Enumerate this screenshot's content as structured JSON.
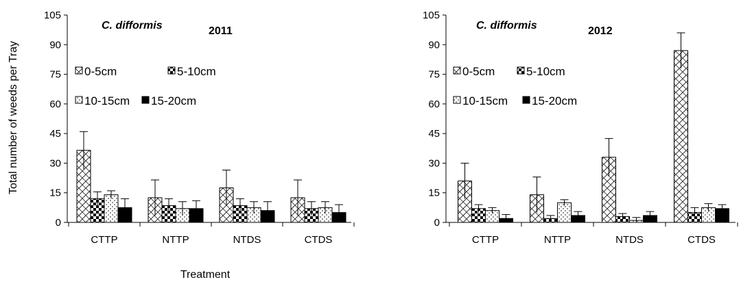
{
  "y_axis_title": "Total number of weeds per Tray",
  "x_axis_title": "Treatment",
  "chart_data": [
    {
      "type": "bar",
      "species": "C. difformis",
      "year": "2011",
      "categories": [
        "CTTP",
        "NTTP",
        "NTDS",
        "CTDS"
      ],
      "yticks": [
        "0",
        "15",
        "30",
        "45",
        "60",
        "75",
        "90",
        "105"
      ],
      "ylim": [
        0,
        105
      ],
      "legend": [
        "0-5cm",
        "5-10cm",
        "10-15cm",
        "15-20cm"
      ],
      "series": [
        {
          "name": "0-5cm",
          "pattern": "crosshatch",
          "values": [
            36.5,
            12.5,
            17.5,
            12.5
          ],
          "errors": [
            9.5,
            9.0,
            9.0,
            9.0
          ]
        },
        {
          "name": "5-10cm",
          "pattern": "checker",
          "values": [
            12.0,
            8.5,
            8.5,
            7.0
          ],
          "errors": [
            3.5,
            3.5,
            3.5,
            3.5
          ]
        },
        {
          "name": "10-15cm",
          "pattern": "dots",
          "values": [
            14.0,
            7.0,
            7.5,
            7.5
          ],
          "errors": [
            2.0,
            3.5,
            3.0,
            3.0
          ]
        },
        {
          "name": "15-20cm",
          "pattern": "solid",
          "values": [
            7.5,
            7.0,
            6.0,
            5.0
          ],
          "errors": [
            4.5,
            4.0,
            4.5,
            4.0
          ]
        }
      ]
    },
    {
      "type": "bar",
      "species": "C. difformis",
      "year": "2012",
      "categories": [
        "CTTP",
        "NTTP",
        "NTDS",
        "CTDS"
      ],
      "yticks": [
        "0",
        "15",
        "30",
        "45",
        "60",
        "75",
        "90",
        "105"
      ],
      "ylim": [
        0,
        105
      ],
      "legend": [
        "0-5cm",
        "5-10cm",
        "10-15cm",
        "15-20cm"
      ],
      "series": [
        {
          "name": "0-5cm",
          "pattern": "crosshatch",
          "values": [
            21.0,
            14.0,
            33.0,
            87.0
          ],
          "errors": [
            9.0,
            9.0,
            9.5,
            9.0
          ]
        },
        {
          "name": "5-10cm",
          "pattern": "checker",
          "values": [
            7.0,
            2.0,
            3.0,
            5.0
          ],
          "errors": [
            2.0,
            1.5,
            1.5,
            2.5
          ]
        },
        {
          "name": "10-15cm",
          "pattern": "dots",
          "values": [
            6.0,
            10.0,
            1.0,
            7.5
          ],
          "errors": [
            1.5,
            1.5,
            1.5,
            2.0
          ]
        },
        {
          "name": "15-20cm",
          "pattern": "solid",
          "values": [
            2.0,
            3.5,
            3.5,
            7.0
          ],
          "errors": [
            2.0,
            2.0,
            2.0,
            2.0
          ]
        }
      ]
    }
  ]
}
